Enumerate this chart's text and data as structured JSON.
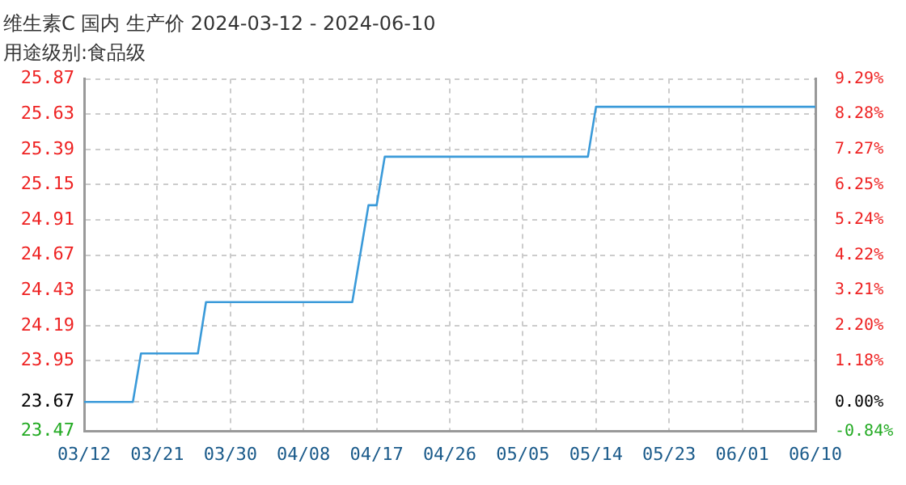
{
  "chart_data": {
    "type": "line",
    "title": "维生素C 国内 生产价 2024-03-12 - 2024-06-10",
    "subtitle": "用途级别:食品级",
    "x": [
      "2024-03-12",
      "2024-03-18",
      "2024-03-19",
      "2024-03-26",
      "2024-03-27",
      "2024-04-14",
      "2024-04-16",
      "2024-04-17",
      "2024-04-18",
      "2024-05-13",
      "2024-05-14",
      "2024-06-10"
    ],
    "series": [
      {
        "color": "#3a9ad9",
        "values": [
          23.67,
          23.67,
          24.0,
          24.0,
          24.35,
          24.35,
          25.01,
          25.01,
          25.34,
          25.34,
          25.68,
          25.68
        ]
      }
    ],
    "xlim": [
      "2024-03-12",
      "2024-06-10"
    ],
    "xticks": [
      {
        "value": "2024-03-12",
        "label": "03/12"
      },
      {
        "value": "2024-03-21",
        "label": "03/21"
      },
      {
        "value": "2024-03-30",
        "label": "03/30"
      },
      {
        "value": "2024-04-08",
        "label": "04/08"
      },
      {
        "value": "2024-04-17",
        "label": "04/17"
      },
      {
        "value": "2024-04-26",
        "label": "04/26"
      },
      {
        "value": "2024-05-05",
        "label": "05/05"
      },
      {
        "value": "2024-05-14",
        "label": "05/14"
      },
      {
        "value": "2024-05-23",
        "label": "05/23"
      },
      {
        "value": "2024-06-01",
        "label": "06/01"
      },
      {
        "value": "2024-06-10",
        "label": "06/10"
      }
    ],
    "ylim": [
      23.47,
      25.87
    ],
    "yticks": [
      23.47,
      23.67,
      23.95,
      24.19,
      24.43,
      24.67,
      24.91,
      25.15,
      25.39,
      25.63,
      25.87
    ],
    "y2lim": [
      -0.84,
      9.29
    ],
    "y2ticks": [
      {
        "value": -0.84,
        "label": "-0.84%"
      },
      {
        "value": 0,
        "label": "0.00%"
      },
      {
        "value": 1.18,
        "label": "1.18%"
      },
      {
        "value": 2.2,
        "label": "2.20%"
      },
      {
        "value": 3.21,
        "label": "3.21%"
      },
      {
        "value": 4.22,
        "label": "4.22%"
      },
      {
        "value": 5.24,
        "label": "5.24%"
      },
      {
        "value": 6.25,
        "label": "6.25%"
      },
      {
        "value": 7.27,
        "label": "7.27%"
      },
      {
        "value": 8.28,
        "label": "8.28%"
      },
      {
        "value": 9.29,
        "label": "9.29%"
      }
    ],
    "grid": true,
    "legend": false,
    "marker": "none",
    "line_style": "solid"
  }
}
